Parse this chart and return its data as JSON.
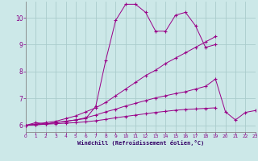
{
  "background_color": "#cce8e8",
  "grid_color": "#aacccc",
  "line_color": "#990088",
  "xlabel": "Windchill (Refroidissement éolien,°C)",
  "xlabel_color": "#330066",
  "tick_color": "#880088",
  "xlim": [
    0,
    23
  ],
  "ylim": [
    5.75,
    10.6
  ],
  "yticks": [
    6,
    7,
    8,
    9,
    10
  ],
  "xticks": [
    0,
    1,
    2,
    3,
    4,
    5,
    6,
    7,
    8,
    9,
    10,
    11,
    12,
    13,
    14,
    15,
    16,
    17,
    18,
    19,
    20,
    21,
    22,
    23
  ],
  "series": [
    {
      "x": [
        0,
        1,
        2,
        3,
        4,
        5,
        6,
        7,
        8,
        9,
        10,
        11,
        12,
        13,
        14,
        15,
        16,
        17,
        18,
        19
      ],
      "y": [
        6.0,
        6.1,
        6.05,
        6.1,
        6.15,
        6.2,
        6.25,
        6.7,
        8.4,
        9.9,
        10.5,
        10.5,
        10.2,
        9.5,
        9.5,
        10.1,
        10.2,
        9.7,
        8.9,
        9.0
      ]
    },
    {
      "x": [
        0,
        1,
        2,
        3,
        4,
        5,
        6,
        7,
        8,
        9,
        10,
        11,
        12,
        13,
        14,
        15,
        16,
        17,
        18,
        19
      ],
      "y": [
        6.0,
        6.05,
        6.1,
        6.15,
        6.25,
        6.35,
        6.5,
        6.65,
        6.85,
        7.1,
        7.35,
        7.6,
        7.85,
        8.05,
        8.3,
        8.5,
        8.7,
        8.9,
        9.1,
        9.3
      ]
    },
    {
      "x": [
        0,
        1,
        2,
        3,
        4,
        5,
        6,
        7,
        8,
        9,
        10,
        11,
        12,
        13,
        14,
        15,
        16,
        17,
        18,
        19,
        20,
        21,
        22,
        23
      ],
      "y": [
        6.0,
        6.02,
        6.05,
        6.1,
        6.15,
        6.2,
        6.28,
        6.38,
        6.5,
        6.6,
        6.72,
        6.82,
        6.92,
        7.02,
        7.1,
        7.18,
        7.25,
        7.35,
        7.45,
        7.72,
        6.5,
        6.2,
        6.48,
        6.55
      ]
    },
    {
      "x": [
        0,
        1,
        2,
        3,
        4,
        5,
        6,
        7,
        8,
        9,
        10,
        11,
        12,
        13,
        14,
        15,
        16,
        17,
        18,
        19
      ],
      "y": [
        6.0,
        6.02,
        6.04,
        6.06,
        6.08,
        6.1,
        6.13,
        6.17,
        6.22,
        6.28,
        6.33,
        6.38,
        6.43,
        6.48,
        6.52,
        6.56,
        6.59,
        6.61,
        6.63,
        6.65
      ]
    }
  ]
}
